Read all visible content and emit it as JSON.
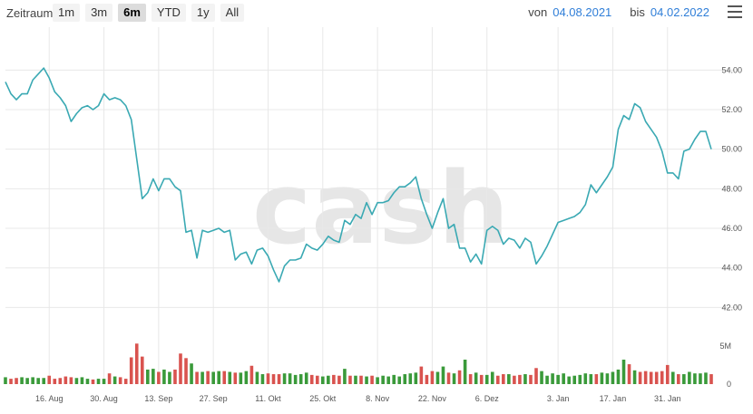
{
  "toolbar": {
    "range_label": "Zeitraum",
    "buttons": [
      "1m",
      "3m",
      "6m",
      "YTD",
      "1y",
      "All"
    ],
    "active": "6m",
    "from_label": "von",
    "from_date": "04.08.2021",
    "to_label": "bis",
    "to_date": "04.02.2022"
  },
  "watermark": "cash",
  "colors": {
    "price_line": "#3aa9b3",
    "volume_up": "#3a9a3a",
    "volume_down": "#d9534f",
    "grid": "#e8e8e8"
  },
  "chart_data": {
    "type": "line",
    "price_ticks": [
      "42.00",
      "44.00",
      "46.00",
      "48.00",
      "50.00",
      "52.00",
      "54.00"
    ],
    "volume_ticks": [
      "0",
      "5M"
    ],
    "x_tick_labels": [
      "16. Aug",
      "30. Aug",
      "13. Sep",
      "27. Sep",
      "11. Okt",
      "25. Okt",
      "8. Nov",
      "22. Nov",
      "6. Dez",
      "3. Jan",
      "17. Jan",
      "31. Jan"
    ],
    "ylim_price": [
      40.6,
      55.8
    ],
    "ylim_volume": [
      0,
      6.4
    ],
    "price": [
      53.4,
      52.8,
      52.5,
      52.8,
      52.8,
      53.5,
      53.8,
      54.1,
      53.6,
      52.9,
      52.6,
      52.2,
      51.4,
      51.8,
      52.1,
      52.2,
      52.0,
      52.2,
      52.8,
      52.5,
      52.6,
      52.5,
      52.2,
      51.5,
      49.5,
      47.5,
      47.8,
      48.5,
      47.9,
      48.5,
      48.5,
      48.1,
      47.9,
      45.8,
      45.9,
      44.5,
      45.9,
      45.8,
      45.9,
      46.0,
      45.8,
      45.9,
      44.4,
      44.7,
      44.8,
      44.2,
      44.9,
      45.0,
      44.6,
      43.9,
      43.3,
      44.1,
      44.4,
      44.4,
      44.5,
      45.2,
      45.0,
      44.9,
      45.2,
      45.6,
      45.4,
      45.3,
      46.4,
      46.2,
      46.7,
      46.5,
      47.3,
      46.7,
      47.3,
      47.3,
      47.4,
      47.8,
      48.1,
      48.1,
      48.3,
      48.6,
      47.5,
      46.7,
      46.0,
      46.8,
      47.5,
      46.0,
      46.2,
      45.0,
      45.0,
      44.3,
      44.7,
      44.2,
      45.9,
      46.1,
      45.9,
      45.2,
      45.5,
      45.4,
      45.0,
      45.5,
      45.3,
      44.2,
      44.6,
      45.1,
      45.7,
      46.3,
      46.4,
      46.5,
      46.6,
      46.8,
      47.2,
      48.2,
      47.8,
      48.2,
      48.6,
      49.1,
      51.0,
      51.7,
      51.5,
      52.3,
      52.1,
      51.4,
      51.0,
      50.6,
      49.9,
      48.8,
      48.8,
      48.5,
      49.9,
      50.0,
      50.5,
      50.9,
      50.9,
      50.0
    ],
    "volume": [
      0.9,
      0.7,
      0.8,
      0.9,
      0.8,
      0.9,
      0.8,
      0.8,
      1.1,
      0.7,
      0.8,
      1.0,
      0.9,
      0.8,
      0.9,
      0.7,
      0.6,
      0.7,
      0.7,
      1.4,
      1.0,
      0.9,
      0.7,
      3.5,
      5.3,
      3.6,
      1.9,
      2.0,
      1.6,
      1.9,
      1.6,
      1.9,
      4.0,
      3.4,
      2.7,
      1.6,
      1.6,
      1.7,
      1.6,
      1.7,
      1.7,
      1.6,
      1.5,
      1.5,
      1.7,
      2.4,
      1.6,
      1.3,
      1.4,
      1.3,
      1.3,
      1.4,
      1.4,
      1.2,
      1.3,
      1.5,
      1.2,
      1.1,
      1.0,
      1.1,
      1.2,
      1.1,
      2.0,
      1.1,
      1.1,
      1.1,
      1.0,
      1.1,
      0.9,
      1.1,
      1.0,
      1.2,
      1.0,
      1.3,
      1.4,
      1.5,
      2.3,
      1.2,
      1.7,
      1.6,
      2.3,
      1.5,
      1.4,
      1.8,
      3.2,
      1.3,
      1.5,
      1.2,
      1.2,
      1.6,
      1.1,
      1.3,
      1.3,
      1.1,
      1.2,
      1.3,
      1.2,
      2.1,
      1.7,
      1.1,
      1.4,
      1.2,
      1.4,
      1.0,
      1.1,
      1.2,
      1.4,
      1.3,
      1.3,
      1.5,
      1.4,
      1.6,
      1.9,
      3.2,
      2.6,
      1.8,
      1.6,
      1.7,
      1.6,
      1.6,
      1.7,
      2.5,
      1.6,
      1.3,
      1.3,
      1.6,
      1.4,
      1.4,
      1.5,
      1.3
    ]
  }
}
